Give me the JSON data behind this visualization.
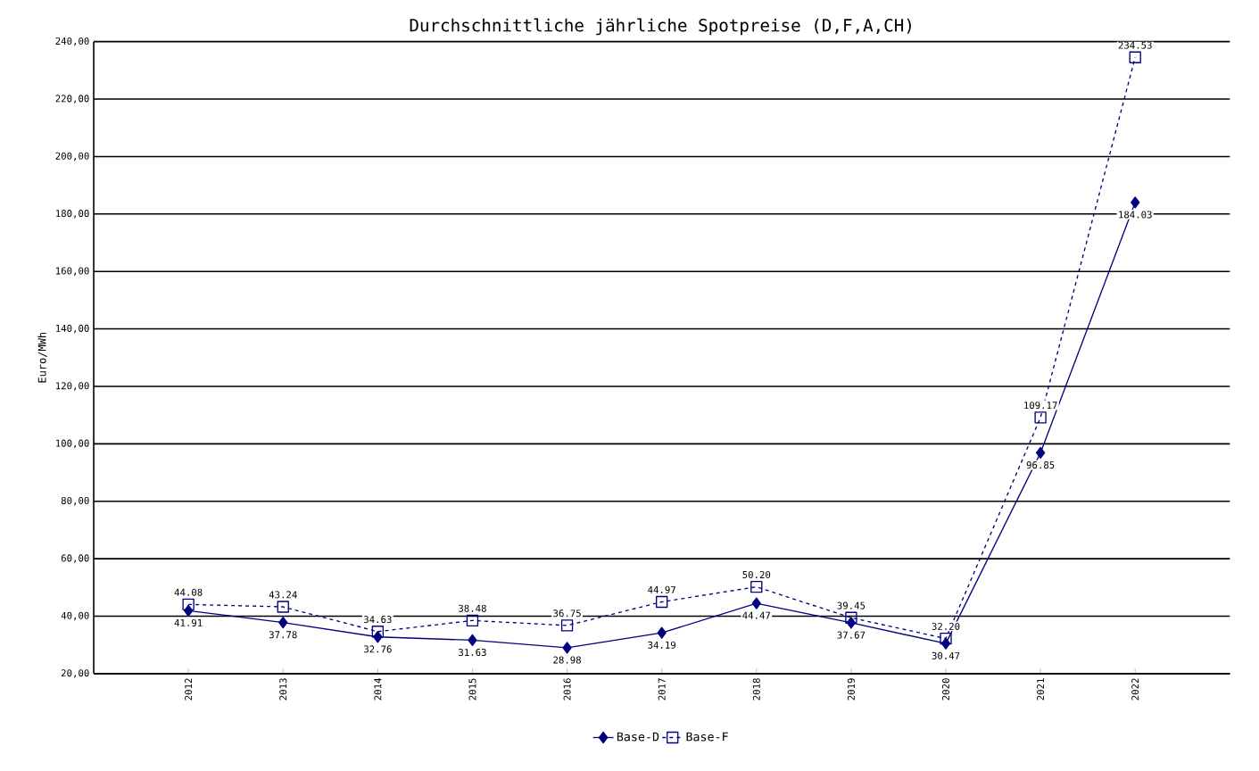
{
  "chart_data": {
    "type": "line",
    "title": "Durchschnittliche jährliche Spotpreise (D,F,A,CH)",
    "ylabel": "Euro/MWh",
    "categories": [
      "2012",
      "2013",
      "2014",
      "2015",
      "2016",
      "2017",
      "2018",
      "2019",
      "2020",
      "2021",
      "2022"
    ],
    "series": [
      {
        "name": "Base-D",
        "color": "#000080",
        "marker": "diamond",
        "line_style": "solid",
        "values": [
          41.91,
          37.78,
          32.76,
          31.63,
          28.98,
          34.19,
          44.47,
          37.67,
          30.47,
          96.85,
          184.03
        ],
        "value_labels": [
          "41.91",
          "37.78",
          "32.76",
          "31.63",
          "28.98",
          "34.19",
          "44.47",
          "37.67",
          "30.47",
          "96.85",
          "184.03"
        ]
      },
      {
        "name": "Base-F",
        "color": "#000080",
        "marker": "square",
        "line_style": "dashed",
        "values": [
          44.08,
          43.24,
          34.63,
          38.48,
          36.75,
          44.97,
          50.2,
          39.45,
          32.2,
          109.17,
          234.53
        ],
        "value_labels": [
          "44.08",
          "43.24",
          "34.63",
          "38.48",
          "36.75",
          "44.97",
          "50.20",
          "39.45",
          "32.20",
          "109.17",
          "234.53"
        ]
      }
    ],
    "ylim": [
      20,
      240
    ],
    "yticks": [
      {
        "value": 20,
        "label": "20,00"
      },
      {
        "value": 40,
        "label": "40,00"
      },
      {
        "value": 60,
        "label": "60,00"
      },
      {
        "value": 80,
        "label": "80,00"
      },
      {
        "value": 100,
        "label": "100,00"
      },
      {
        "value": 120,
        "label": "120,00"
      },
      {
        "value": 140,
        "label": "140,00"
      },
      {
        "value": 160,
        "label": "160,00"
      },
      {
        "value": 180,
        "label": "180,00"
      },
      {
        "value": 200,
        "label": "200,00"
      },
      {
        "value": 220,
        "label": "220,00"
      },
      {
        "value": 240,
        "label": "240,00"
      }
    ],
    "grid": "y",
    "legend": "bottom"
  }
}
